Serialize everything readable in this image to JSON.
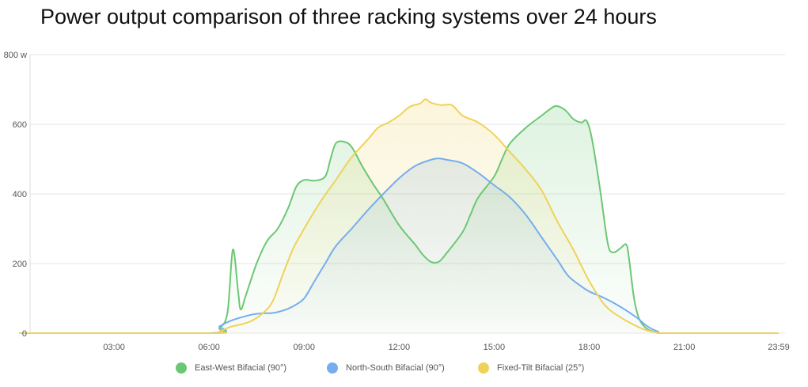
{
  "chart_data": {
    "type": "area",
    "title": "Power output comparison of three racking systems over 24 hours",
    "xlabel": "",
    "ylabel": "",
    "ylim": [
      0,
      800
    ],
    "y_ticks": [
      {
        "value": 0,
        "label": "0"
      },
      {
        "value": 200,
        "label": "200"
      },
      {
        "value": 400,
        "label": "400"
      },
      {
        "value": 600,
        "label": "600"
      },
      {
        "value": 800,
        "label": "800 w"
      }
    ],
    "x_ticks": [
      {
        "value": "03:00",
        "label": "03:00"
      },
      {
        "value": "06:00",
        "label": "06:00"
      },
      {
        "value": "09:00",
        "label": "09:00"
      },
      {
        "value": "12:00",
        "label": "12:00"
      },
      {
        "value": "15:00",
        "label": "15:00"
      },
      {
        "value": "18:00",
        "label": "18:00"
      },
      {
        "value": "21:00",
        "label": "21:00"
      },
      {
        "value": "23:59",
        "label": "23:59"
      }
    ],
    "grid": true,
    "legend_position": "bottom",
    "series": [
      {
        "name": "East-West Bifacial (90°)",
        "color": "#6cc774",
        "points": [
          [
            "00:00",
            0
          ],
          [
            "06:00",
            0
          ],
          [
            "06:20",
            15
          ],
          [
            "06:35",
            60
          ],
          [
            "06:45",
            240
          ],
          [
            "06:55",
            120
          ],
          [
            "07:00",
            68
          ],
          [
            "07:10",
            110
          ],
          [
            "07:30",
            200
          ],
          [
            "07:50",
            265
          ],
          [
            "08:10",
            300
          ],
          [
            "08:30",
            360
          ],
          [
            "08:45",
            420
          ],
          [
            "09:00",
            440
          ],
          [
            "09:20",
            438
          ],
          [
            "09:40",
            450
          ],
          [
            "09:50",
            500
          ],
          [
            "10:00",
            545
          ],
          [
            "10:15",
            550
          ],
          [
            "10:30",
            535
          ],
          [
            "10:50",
            480
          ],
          [
            "11:10",
            430
          ],
          [
            "11:30",
            385
          ],
          [
            "12:00",
            310
          ],
          [
            "12:30",
            255
          ],
          [
            "12:45",
            225
          ],
          [
            "13:00",
            205
          ],
          [
            "13:15",
            205
          ],
          [
            "13:30",
            230
          ],
          [
            "14:00",
            290
          ],
          [
            "14:15",
            340
          ],
          [
            "14:30",
            390
          ],
          [
            "15:00",
            450
          ],
          [
            "15:15",
            500
          ],
          [
            "15:30",
            545
          ],
          [
            "16:00",
            590
          ],
          [
            "16:30",
            625
          ],
          [
            "16:50",
            648
          ],
          [
            "17:00",
            652
          ],
          [
            "17:15",
            640
          ],
          [
            "17:30",
            615
          ],
          [
            "17:45",
            605
          ],
          [
            "17:55",
            610
          ],
          [
            "18:05",
            560
          ],
          [
            "18:20",
            420
          ],
          [
            "18:35",
            260
          ],
          [
            "18:45",
            232
          ],
          [
            "19:00",
            245
          ],
          [
            "19:10",
            255
          ],
          [
            "19:15",
            220
          ],
          [
            "19:25",
            100
          ],
          [
            "19:35",
            40
          ],
          [
            "19:50",
            12
          ],
          [
            "20:10",
            2
          ],
          [
            "20:30",
            0
          ],
          [
            "23:59",
            0
          ]
        ]
      },
      {
        "name": "North-South Bifacial (90°)",
        "color": "#76adef",
        "points": [
          [
            "00:00",
            0
          ],
          [
            "06:00",
            0
          ],
          [
            "06:20",
            20
          ],
          [
            "06:40",
            35
          ],
          [
            "07:00",
            45
          ],
          [
            "07:20",
            53
          ],
          [
            "07:40",
            57
          ],
          [
            "08:00",
            58
          ],
          [
            "08:20",
            65
          ],
          [
            "08:40",
            78
          ],
          [
            "09:00",
            100
          ],
          [
            "09:20",
            150
          ],
          [
            "09:40",
            200
          ],
          [
            "10:00",
            250
          ],
          [
            "10:30",
            300
          ],
          [
            "11:00",
            352
          ],
          [
            "11:30",
            400
          ],
          [
            "12:00",
            445
          ],
          [
            "12:30",
            480
          ],
          [
            "13:00",
            498
          ],
          [
            "13:15",
            502
          ],
          [
            "13:30",
            498
          ],
          [
            "14:00",
            488
          ],
          [
            "14:30",
            460
          ],
          [
            "15:00",
            425
          ],
          [
            "15:30",
            390
          ],
          [
            "16:00",
            340
          ],
          [
            "16:30",
            275
          ],
          [
            "17:00",
            210
          ],
          [
            "17:20",
            165
          ],
          [
            "17:40",
            140
          ],
          [
            "18:00",
            120
          ],
          [
            "18:30",
            100
          ],
          [
            "19:00",
            75
          ],
          [
            "19:30",
            45
          ],
          [
            "19:50",
            20
          ],
          [
            "20:10",
            5
          ],
          [
            "20:30",
            0
          ],
          [
            "23:59",
            0
          ]
        ]
      },
      {
        "name": "Fixed-Tilt Bifacial (25°)",
        "color": "#efd259",
        "points": [
          [
            "00:00",
            0
          ],
          [
            "06:00",
            0
          ],
          [
            "06:20",
            5
          ],
          [
            "06:40",
            18
          ],
          [
            "07:00",
            25
          ],
          [
            "07:20",
            35
          ],
          [
            "07:40",
            55
          ],
          [
            "08:00",
            90
          ],
          [
            "08:20",
            170
          ],
          [
            "08:40",
            245
          ],
          [
            "09:00",
            300
          ],
          [
            "09:30",
            375
          ],
          [
            "10:00",
            440
          ],
          [
            "10:30",
            505
          ],
          [
            "11:00",
            555
          ],
          [
            "11:20",
            590
          ],
          [
            "11:40",
            605
          ],
          [
            "12:00",
            625
          ],
          [
            "12:20",
            650
          ],
          [
            "12:40",
            660
          ],
          [
            "12:50",
            672
          ],
          [
            "13:00",
            662
          ],
          [
            "13:20",
            655
          ],
          [
            "13:40",
            655
          ],
          [
            "14:00",
            625
          ],
          [
            "14:30",
            605
          ],
          [
            "15:00",
            570
          ],
          [
            "15:30",
            520
          ],
          [
            "16:00",
            470
          ],
          [
            "16:30",
            410
          ],
          [
            "17:00",
            320
          ],
          [
            "17:30",
            240
          ],
          [
            "18:00",
            150
          ],
          [
            "18:30",
            80
          ],
          [
            "19:00",
            45
          ],
          [
            "19:30",
            20
          ],
          [
            "19:50",
            8
          ],
          [
            "20:10",
            2
          ],
          [
            "20:30",
            0
          ],
          [
            "23:59",
            0
          ]
        ]
      }
    ]
  }
}
